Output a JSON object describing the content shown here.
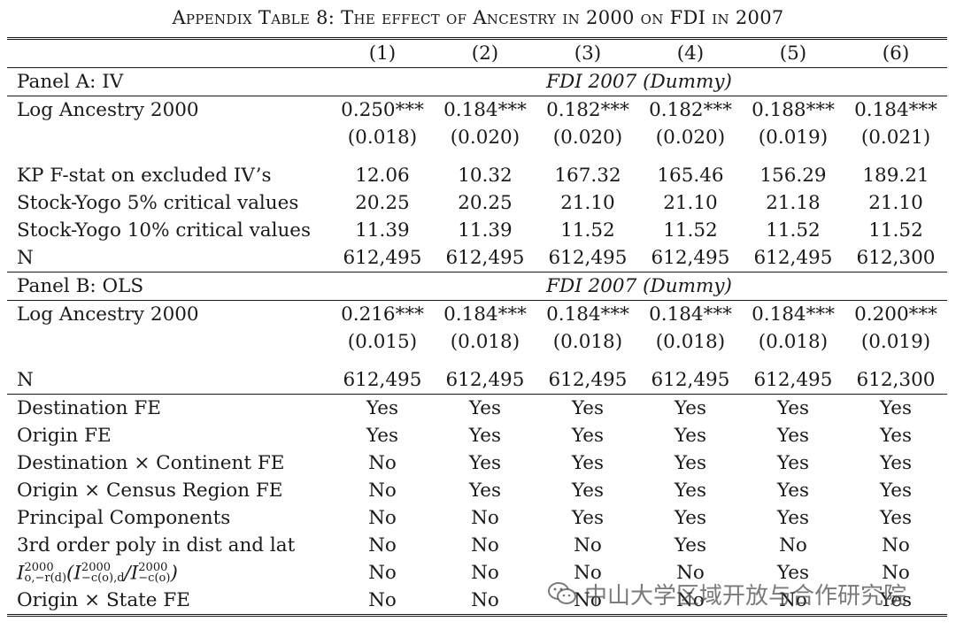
{
  "caption": "Appendix Table 8: The effect of Ancestry in 2000 on FDI in 2007",
  "columns": [
    "(1)",
    "(2)",
    "(3)",
    "(4)",
    "(5)",
    "(6)"
  ],
  "panel_a": {
    "label": "Panel A: IV",
    "dv": "FDI 2007 (Dummy)",
    "coef_label": "Log Ancestry 2000",
    "coefs": [
      "0.250***",
      "0.184***",
      "0.182***",
      "0.182***",
      "0.188***",
      "0.184***"
    ],
    "ses": [
      "(0.018)",
      "(0.020)",
      "(0.020)",
      "(0.020)",
      "(0.019)",
      "(0.021)"
    ],
    "stats": [
      {
        "label": "KP F-stat on excluded IV’s",
        "values": [
          "12.06",
          "10.32",
          "167.32",
          "165.46",
          "156.29",
          "189.21"
        ]
      },
      {
        "label": "Stock-Yogo 5% critical values",
        "values": [
          "20.25",
          "20.25",
          "21.10",
          "21.10",
          "21.18",
          "21.10"
        ]
      },
      {
        "label": "Stock-Yogo 10% critical values",
        "values": [
          "11.39",
          "11.39",
          "11.52",
          "11.52",
          "11.52",
          "11.52"
        ]
      },
      {
        "label": "N",
        "values": [
          "612,495",
          "612,495",
          "612,495",
          "612,495",
          "612,495",
          "612,300"
        ]
      }
    ]
  },
  "panel_b": {
    "label": "Panel B: OLS",
    "dv": "FDI 2007 (Dummy)",
    "coef_label": "Log Ancestry 2000",
    "coefs": [
      "0.216***",
      "0.184***",
      "0.184***",
      "0.184***",
      "0.184***",
      "0.200***"
    ],
    "ses": [
      "(0.015)",
      "(0.018)",
      "(0.018)",
      "(0.018)",
      "(0.018)",
      "(0.019)"
    ],
    "n_label": "N",
    "n_values": [
      "612,495",
      "612,495",
      "612,495",
      "612,495",
      "612,495",
      "612,300"
    ]
  },
  "controls": [
    {
      "label": "Destination FE",
      "values": [
        "Yes",
        "Yes",
        "Yes",
        "Yes",
        "Yes",
        "Yes"
      ]
    },
    {
      "label": "Origin FE",
      "values": [
        "Yes",
        "Yes",
        "Yes",
        "Yes",
        "Yes",
        "Yes"
      ]
    },
    {
      "label": "Destination × Continent FE",
      "values": [
        "No",
        "Yes",
        "Yes",
        "Yes",
        "Yes",
        "Yes"
      ]
    },
    {
      "label": "Origin × Census Region FE",
      "values": [
        "No",
        "Yes",
        "Yes",
        "Yes",
        "Yes",
        "Yes"
      ]
    },
    {
      "label": "Principal Components",
      "values": [
        "No",
        "No",
        "Yes",
        "Yes",
        "Yes",
        "Yes"
      ]
    },
    {
      "label": "3rd order poly in dist and lat",
      "values": [
        "No",
        "No",
        "No",
        "Yes",
        "No",
        "No"
      ]
    },
    {
      "label": "I^2000_{o,−r(d)}(I^2000_{−c(o),d}/I^2000_{−c(o)})",
      "values": [
        "No",
        "No",
        "No",
        "No",
        "Yes",
        "No"
      ]
    },
    {
      "label": "Origin × State FE",
      "values": [
        "No",
        "No",
        "No",
        "No",
        "No",
        "Yes"
      ]
    }
  ],
  "watermark": {
    "text": "中山大学区域开放与合作研究院",
    "icon": "wechat-icon"
  }
}
